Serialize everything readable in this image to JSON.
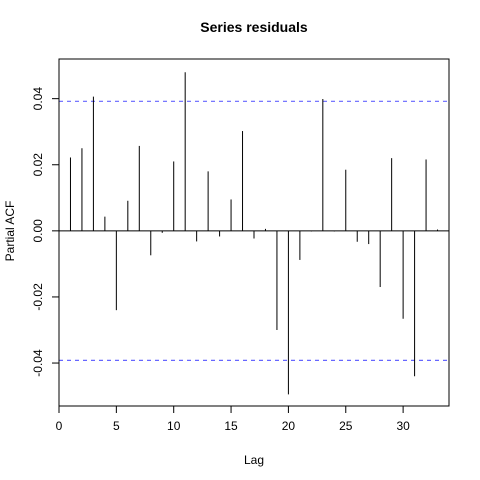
{
  "chart_data": {
    "type": "bar",
    "title": "Series  residuals",
    "xlabel": "Lag",
    "ylabel": "Partial ACF",
    "xlim": [
      0,
      34
    ],
    "ylim": [
      -0.053,
      0.052
    ],
    "x_ticks": [
      0,
      5,
      10,
      15,
      20,
      25,
      30
    ],
    "y_ticks": [
      -0.04,
      -0.02,
      0.0,
      0.02,
      0.04
    ],
    "y_tick_labels": [
      "-0.04",
      "-0.02",
      "0.00",
      "0.02",
      "0.04"
    ],
    "confidence_bound": 0.0392,
    "grid": false,
    "bound_color": "#6666ff",
    "x": [
      1,
      2,
      3,
      4,
      5,
      6,
      7,
      8,
      9,
      10,
      11,
      12,
      13,
      14,
      15,
      16,
      17,
      18,
      19,
      20,
      21,
      22,
      23,
      24,
      25,
      26,
      27,
      28,
      29,
      30,
      31,
      32,
      33
    ],
    "values": [
      0.0222,
      0.025,
      0.0406,
      0.0043,
      -0.024,
      0.0091,
      0.0257,
      -0.0074,
      -0.0006,
      0.021,
      0.048,
      -0.0032,
      0.018,
      -0.0017,
      0.0095,
      0.0302,
      -0.0023,
      0.0006,
      -0.03,
      -0.0495,
      -0.0088,
      -0.0002,
      0.0399,
      -0.0002,
      0.0185,
      -0.0033,
      -0.004,
      -0.017,
      0.022,
      -0.0266,
      -0.044,
      0.0216,
      0.0004
    ]
  }
}
